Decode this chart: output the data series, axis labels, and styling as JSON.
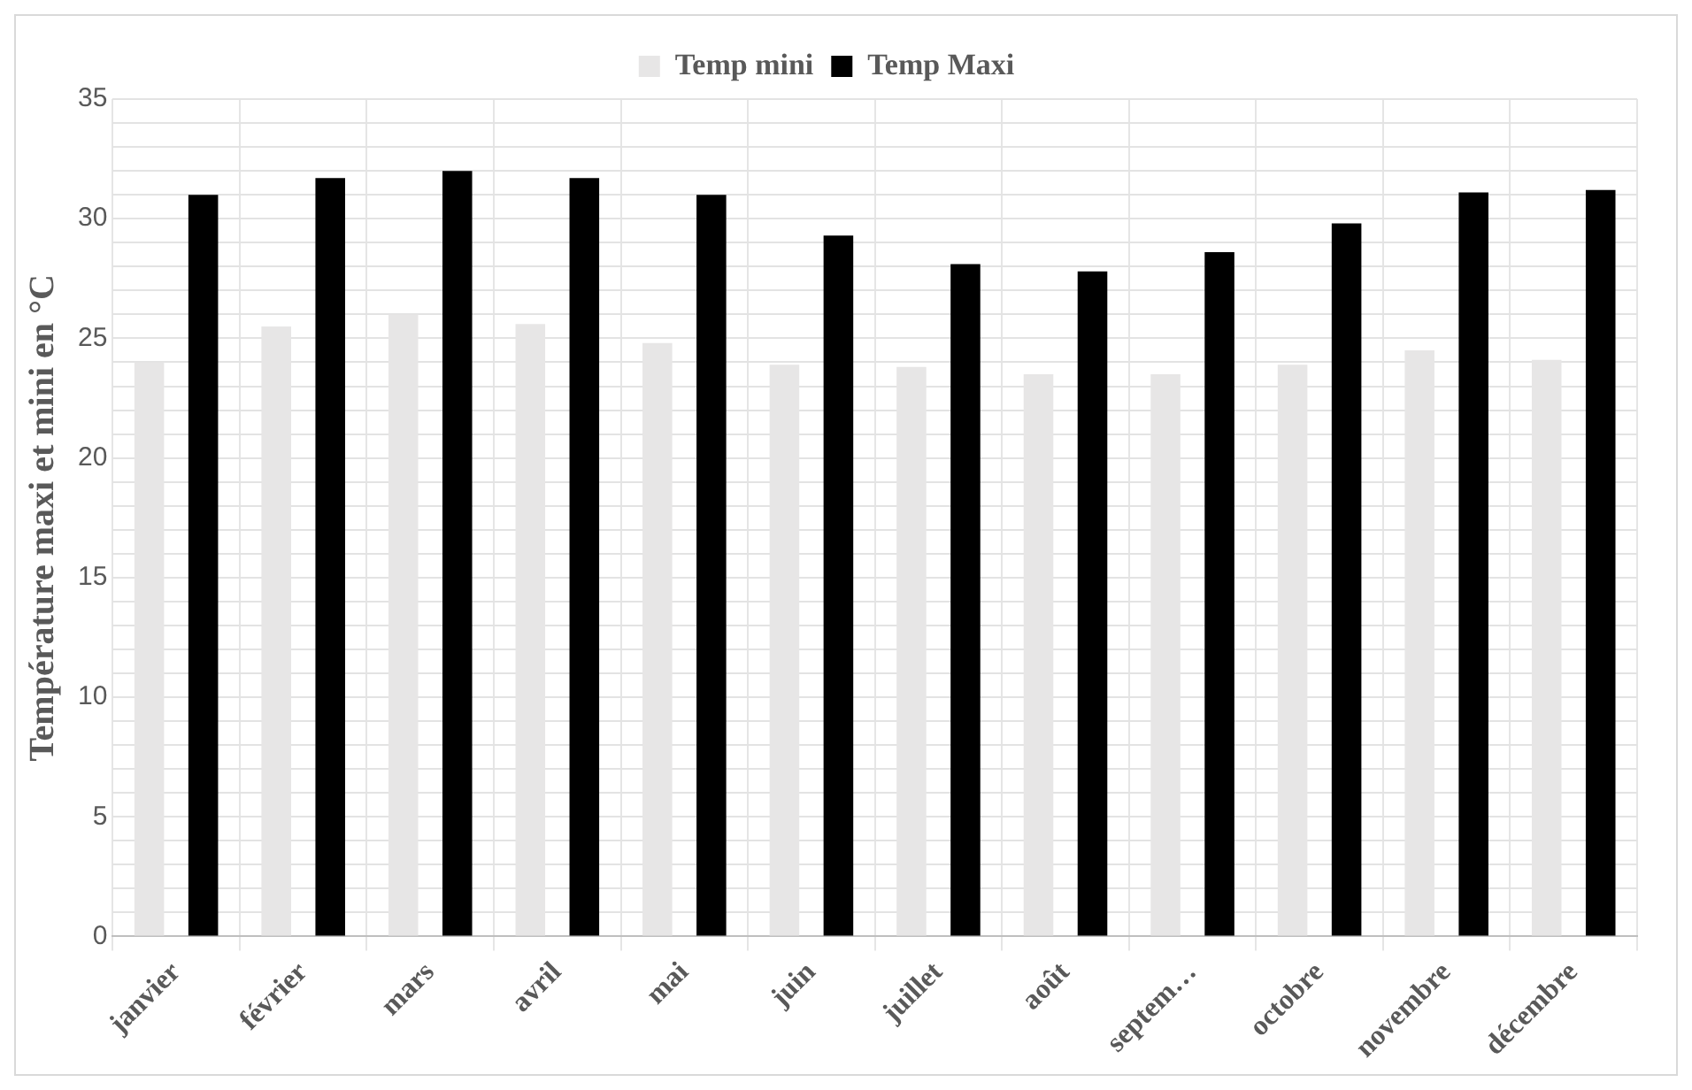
{
  "chart_data": {
    "type": "bar",
    "ylabel": "Température maxi et mini en °C",
    "categories": [
      "janvier",
      "février",
      "mars",
      "avril",
      "mai",
      "juin",
      "juillet",
      "août",
      "septem…",
      "octobre",
      "novembre",
      "décembre"
    ],
    "series": [
      {
        "name": "Temp mini",
        "color": "#e7e6e6",
        "values": [
          24.0,
          25.5,
          26.0,
          25.6,
          24.8,
          23.9,
          23.8,
          23.5,
          23.5,
          23.9,
          24.5,
          24.1
        ]
      },
      {
        "name": "Temp Maxi",
        "color": "#000000",
        "values": [
          31.0,
          31.7,
          32.0,
          31.7,
          31.0,
          29.3,
          28.1,
          27.8,
          28.6,
          29.8,
          31.1,
          31.2
        ]
      }
    ],
    "ylim": [
      0,
      35
    ],
    "yticks": [
      0,
      {
        "value": 1,
        "label": null
      },
      {
        "value": 2,
        "label": null
      },
      {
        "value": 3,
        "label": null
      },
      {
        "value": 4,
        "label": null
      },
      5,
      {
        "value": 6,
        "label": null
      },
      {
        "value": 7,
        "label": null
      },
      {
        "value": 8,
        "label": null
      },
      {
        "value": 9,
        "label": null
      },
      10,
      {
        "value": 11,
        "label": null
      },
      {
        "value": 12,
        "label": null
      },
      {
        "value": 13,
        "label": null
      },
      {
        "value": 14,
        "label": null
      },
      15,
      {
        "value": 16,
        "label": null
      },
      {
        "value": 17,
        "label": null
      },
      {
        "value": 18,
        "label": null
      },
      {
        "value": 19,
        "label": null
      },
      20,
      {
        "value": 21,
        "label": null
      },
      {
        "value": 22,
        "label": null
      },
      {
        "value": 23,
        "label": null
      },
      {
        "value": 24,
        "label": null
      },
      25,
      {
        "value": 26,
        "label": null
      },
      {
        "value": 27,
        "label": null
      },
      {
        "value": 28,
        "label": null
      },
      {
        "value": 29,
        "label": null
      },
      30,
      {
        "value": 31,
        "label": null
      },
      {
        "value": 32,
        "label": null
      },
      {
        "value": 33,
        "label": null
      },
      {
        "value": 34,
        "label": null
      },
      35
    ],
    "grid": true,
    "legend": "top"
  }
}
